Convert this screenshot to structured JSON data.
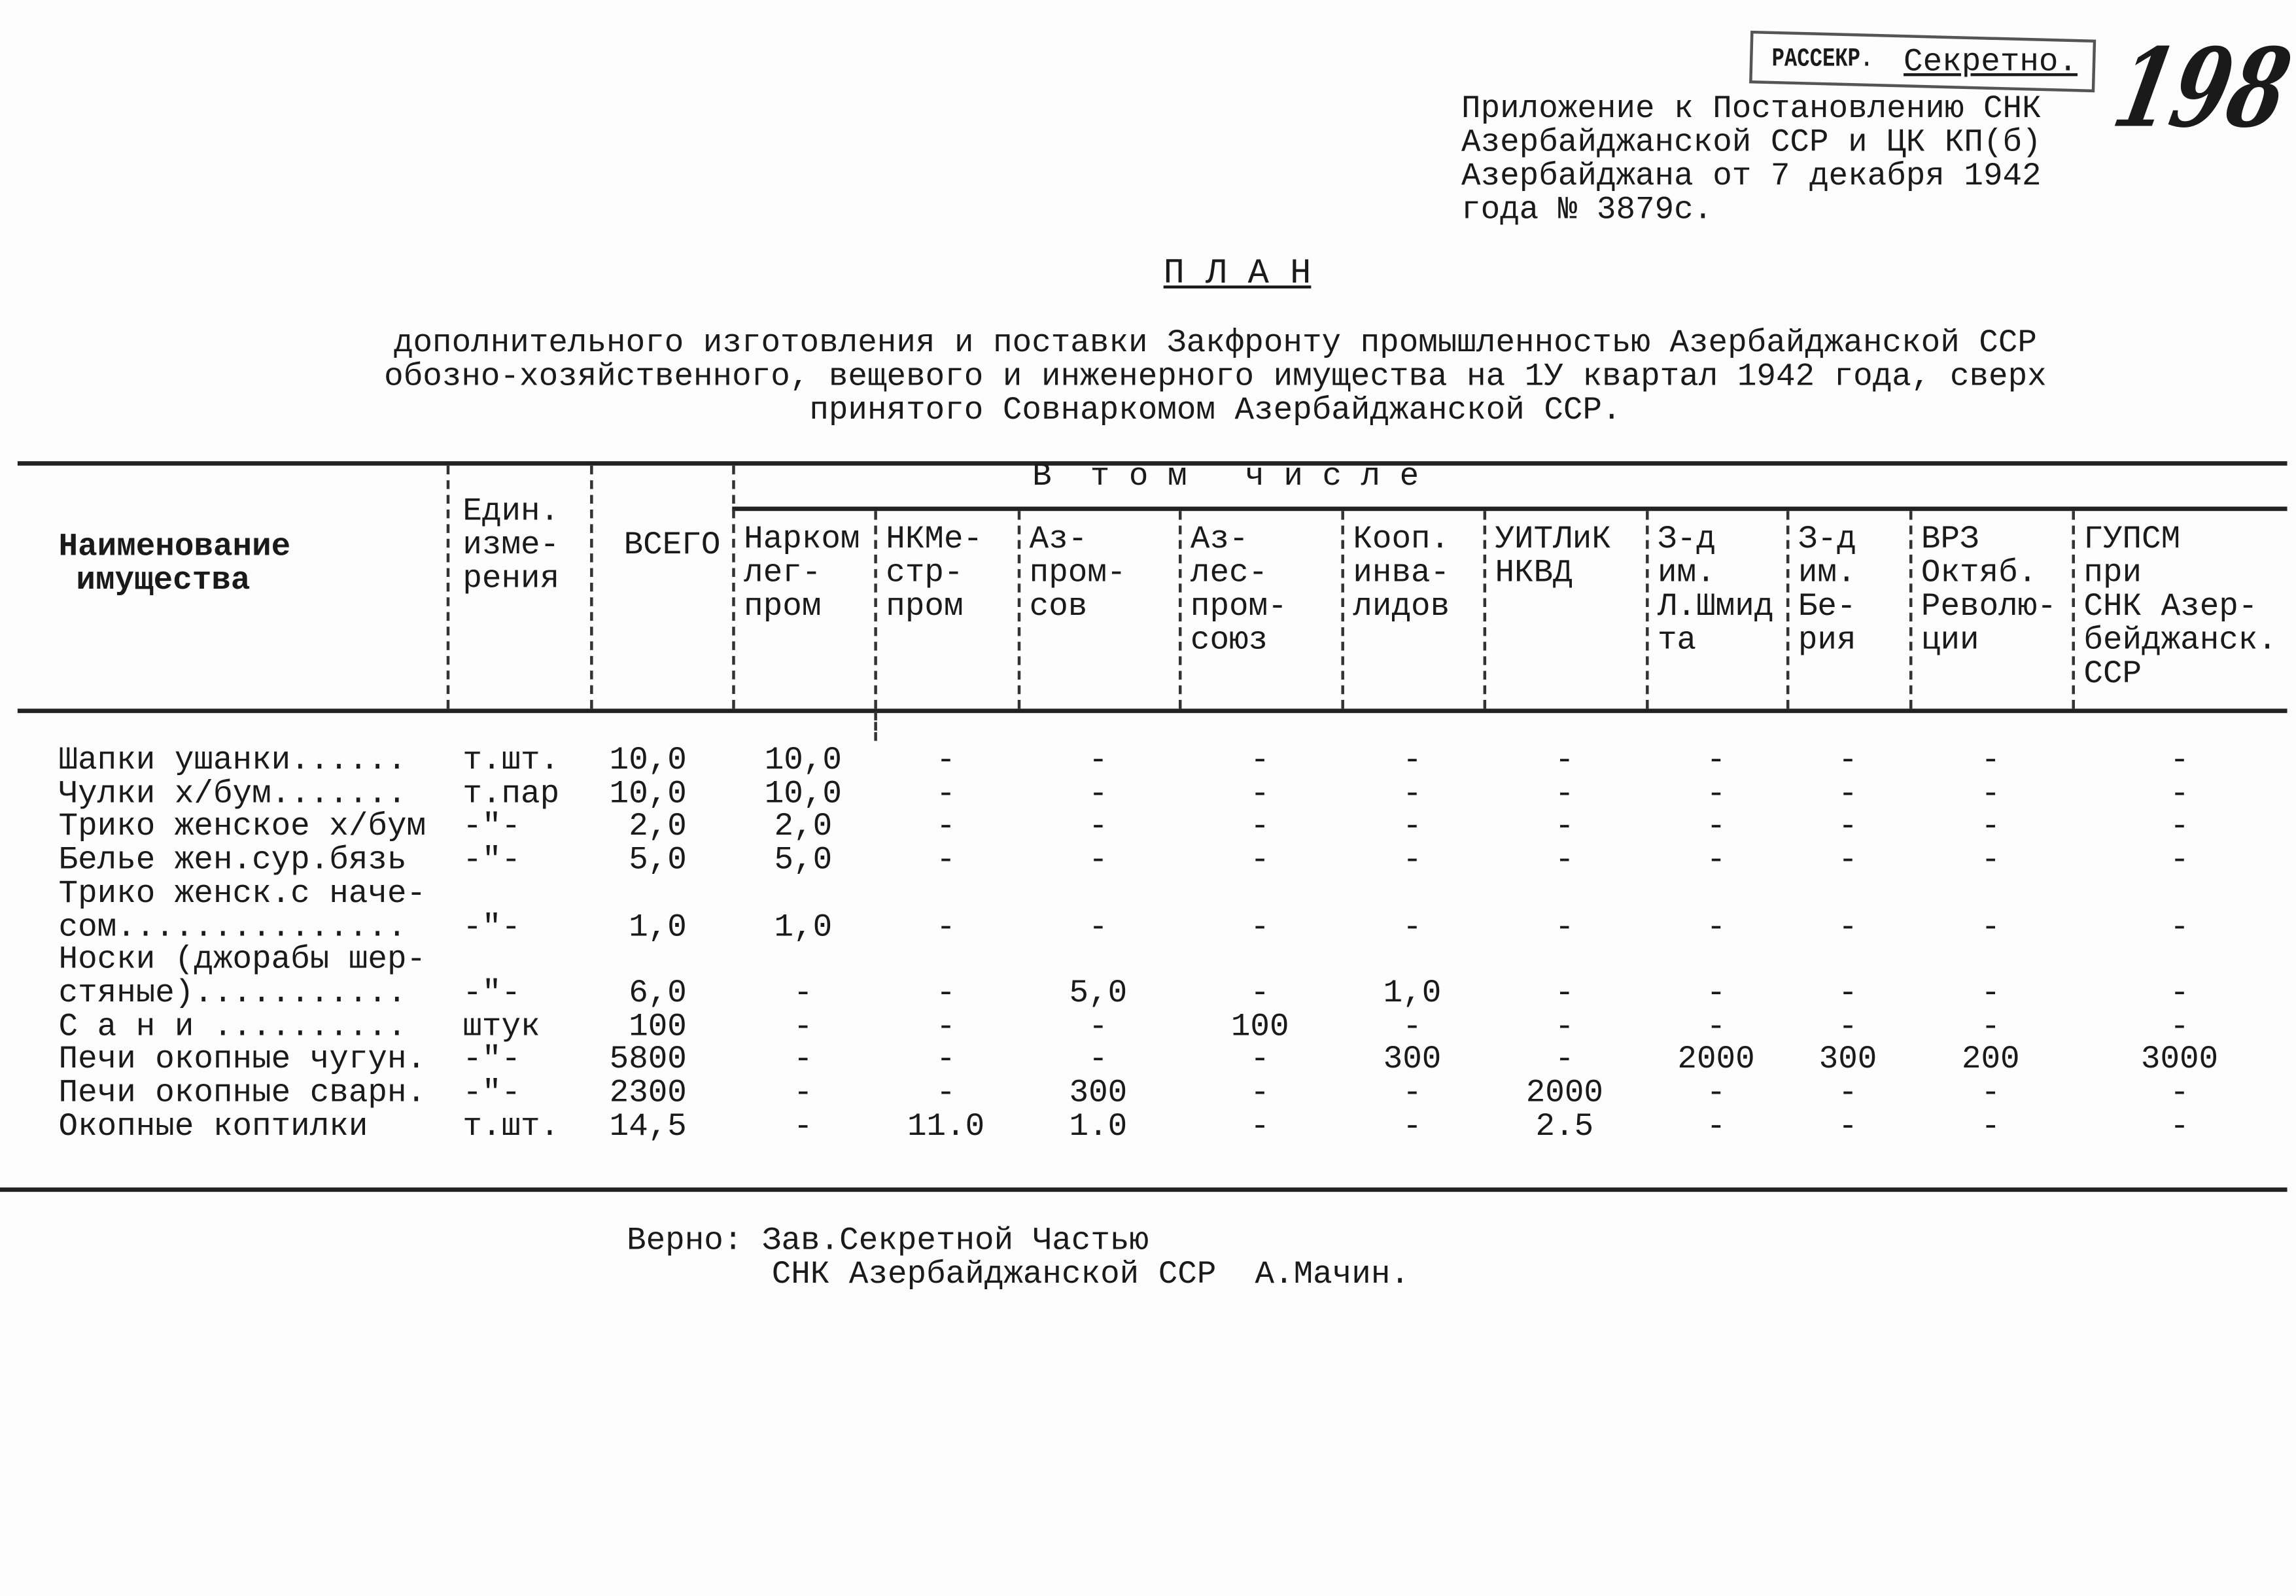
{
  "stamp": {
    "declassified": "РАССЕКР.",
    "classification": "Секретно."
  },
  "archive_page_number": "198",
  "appendix": [
    "Приложение к Постановлению СНК",
    "Азербайджанской ССР и ЦК КП(б)",
    "Азербайджана от 7 декабря 1942",
    "года № 3879с."
  ],
  "title": "П Л А Н",
  "subtitle": [
    "дополнительного изготовления и поставки Закфронту промышленностью Азербайджанской ССР",
    "обозно-хозяйственного, вещевого и инженерного имущества на 1У квартал 1942 года, сверх",
    "принятого Совнаркомом Азербайджанской ССР."
  ],
  "table": {
    "headers": {
      "name": [
        "Наименование",
        "имущества"
      ],
      "unit": [
        "Един.",
        "изме-",
        "рения"
      ],
      "total": "ВСЕГО",
      "group": "В  т о м   ч и с л е",
      "columns": [
        [
          "Нарком",
          "лег-",
          "пром"
        ],
        [
          "НКМе-",
          "стр-",
          "пром"
        ],
        [
          "Аз-",
          "пром-",
          "сов"
        ],
        [
          "Аз-",
          "лес-",
          "пром-",
          "союз"
        ],
        [
          "Кооп.",
          "инва-",
          "лидов"
        ],
        [
          "УИТЛиК",
          "НКВД"
        ],
        [
          "З-д",
          "им.",
          "Л.Шмид",
          "та"
        ],
        [
          "З-д",
          "им.",
          "Бе-",
          "рия"
        ],
        [
          "ВРЗ",
          "Октяб.",
          "Револю-",
          "ции"
        ],
        [
          "ГУПСМ",
          "при",
          "СНК Азер-",
          "бейджанск.",
          "ССР"
        ]
      ]
    },
    "rows": [
      {
        "name": [
          "Шапки ушанки......"
        ],
        "unit": "т.шт.",
        "total": "10,0",
        "values": [
          "10,0",
          "-",
          "-",
          "-",
          "-",
          "-",
          "-",
          "-",
          "-",
          "-"
        ]
      },
      {
        "name": [
          "Чулки х/бум......."
        ],
        "unit": "т.пар",
        "total": "10,0",
        "values": [
          "10,0",
          "-",
          "-",
          "-",
          "-",
          "-",
          "-",
          "-",
          "-",
          "-"
        ]
      },
      {
        "name": [
          "Трико женское х/бум"
        ],
        "unit": "-\"-",
        "total": "2,0",
        "values": [
          "2,0",
          "-",
          "-",
          "-",
          "-",
          "-",
          "-",
          "-",
          "-",
          "-"
        ]
      },
      {
        "name": [
          "Белье жен.сур.бязь"
        ],
        "unit": "-\"-",
        "total": "5,0",
        "values": [
          "5,0",
          "-",
          "-",
          "-",
          "-",
          "-",
          "-",
          "-",
          "-",
          "-"
        ]
      },
      {
        "name": [
          "Трико женск.с наче-",
          "сом..............."
        ],
        "unit": "-\"-",
        "total": "1,0",
        "values": [
          "1,0",
          "-",
          "-",
          "-",
          "-",
          "-",
          "-",
          "-",
          "-",
          "-"
        ]
      },
      {
        "name": [
          "Носки (джорабы шер-",
          "стяные)..........."
        ],
        "unit": "-\"-",
        "total": "6,0",
        "values": [
          "-",
          "-",
          "5,0",
          "-",
          "1,0",
          "-",
          "-",
          "-",
          "-",
          "-"
        ]
      },
      {
        "name": [
          "С а н и .........."
        ],
        "unit": "штук",
        "total": "100",
        "values": [
          "-",
          "-",
          "-",
          "100",
          "-",
          "-",
          "-",
          "-",
          "-",
          "-"
        ]
      },
      {
        "name": [
          "Печи окопные чугун."
        ],
        "unit": "-\"-",
        "total": "5800",
        "values": [
          "-",
          "-",
          "-",
          "-",
          "300",
          "-",
          "2000",
          "300",
          "200",
          "3000"
        ]
      },
      {
        "name": [
          "Печи окопные сварн."
        ],
        "unit": "-\"-",
        "total": "2300",
        "values": [
          "-",
          "-",
          "300",
          "-",
          "-",
          "2000",
          "-",
          "-",
          "-",
          "-"
        ]
      },
      {
        "name": [
          "Окопные коптилки"
        ],
        "unit": "т.шт.",
        "total": "14,5",
        "values": [
          "-",
          "11.0",
          "1.0",
          "-",
          "-",
          "2.5",
          "-",
          "-",
          "-",
          "-"
        ]
      }
    ]
  },
  "footer": {
    "line1": "Верно: Зав.Секретной Частью",
    "line2": "СНК Азербайджанской ССР  А.Мачин."
  }
}
